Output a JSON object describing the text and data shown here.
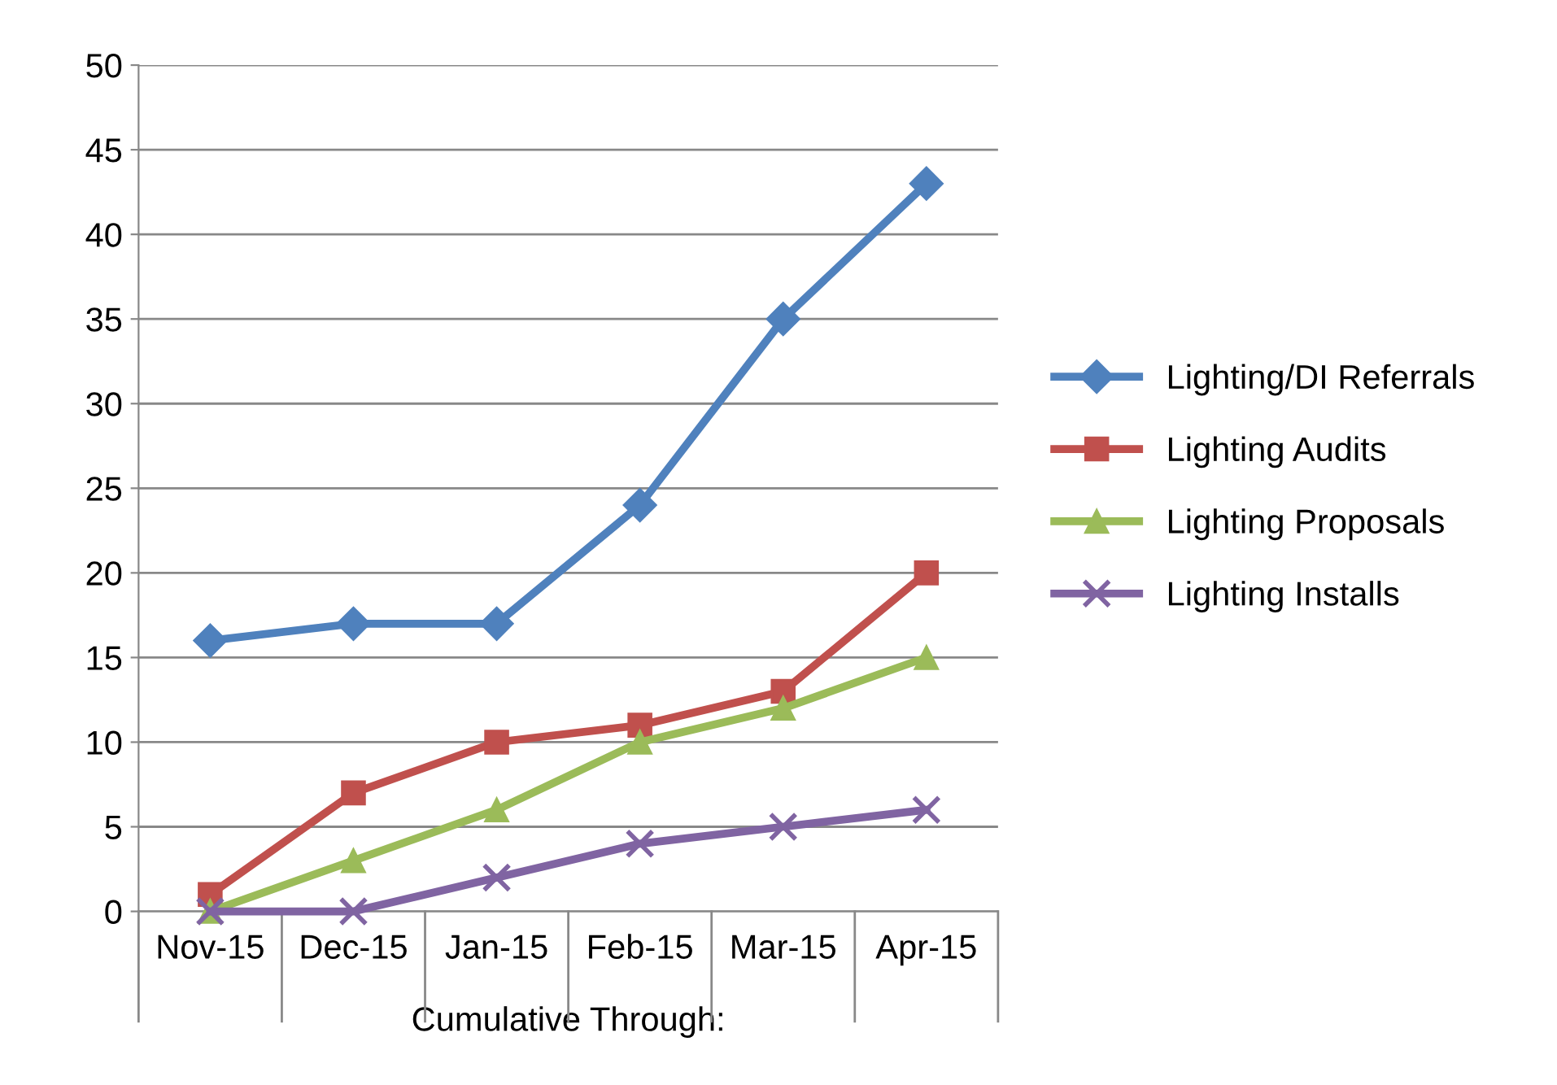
{
  "chart_data": {
    "type": "line",
    "xlabel": "Cumulative Through:",
    "categories": [
      "Nov-15",
      "Dec-15",
      "Jan-15",
      "Feb-15",
      "Mar-15",
      "Apr-15"
    ],
    "series": [
      {
        "name": "Lighting/DI Referrals",
        "color": "#4f81bd",
        "marker": "diamond",
        "values": [
          16,
          17,
          17,
          24,
          35,
          43
        ]
      },
      {
        "name": "Lighting Audits",
        "color": "#c0504d",
        "marker": "square",
        "values": [
          1,
          7,
          10,
          11,
          13,
          20
        ]
      },
      {
        "name": "Lighting Proposals",
        "color": "#9bbb59",
        "marker": "triangle",
        "values": [
          0,
          3,
          6,
          10,
          12,
          15
        ]
      },
      {
        "name": "Lighting Installs",
        "color": "#8064a2",
        "marker": "cross",
        "values": [
          0,
          0,
          2,
          4,
          5,
          6
        ]
      }
    ],
    "ylim": [
      0,
      50
    ],
    "yticks": [
      0,
      5,
      10,
      15,
      20,
      25,
      30,
      35,
      40,
      45,
      50
    ],
    "grid": "y",
    "legend": "right",
    "line_style": "solid"
  }
}
